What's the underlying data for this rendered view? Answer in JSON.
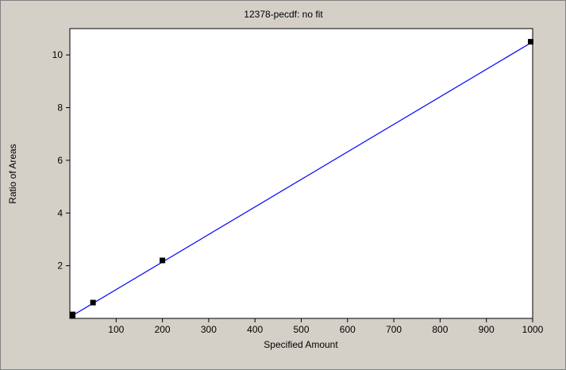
{
  "chart_data": {
    "type": "scatter",
    "title": "12378-pecdf: no fit",
    "xlabel": "Specified Amount",
    "ylabel": "Ratio of Areas",
    "xlim": [
      0,
      1000
    ],
    "ylim": [
      0,
      11
    ],
    "xticks": [
      100,
      200,
      300,
      400,
      500,
      600,
      700,
      800,
      900,
      1000
    ],
    "yticks": [
      2,
      4,
      6,
      8,
      10
    ],
    "points": [
      {
        "x": 2,
        "y": 0.1
      },
      {
        "x": 5,
        "y": 0.15
      },
      {
        "x": 50,
        "y": 0.6
      },
      {
        "x": 200,
        "y": 2.2
      },
      {
        "x": 1000,
        "y": 10.5
      }
    ],
    "fit_line": {
      "x": [
        0,
        1000
      ],
      "y": [
        0.05,
        10.5
      ],
      "color": "#0000ff"
    },
    "grid": false,
    "colors": {
      "plot_bg": "#ffffff",
      "frame_bg": "#d4d0c8",
      "marker": "#000000",
      "line": "#0000ff"
    }
  }
}
